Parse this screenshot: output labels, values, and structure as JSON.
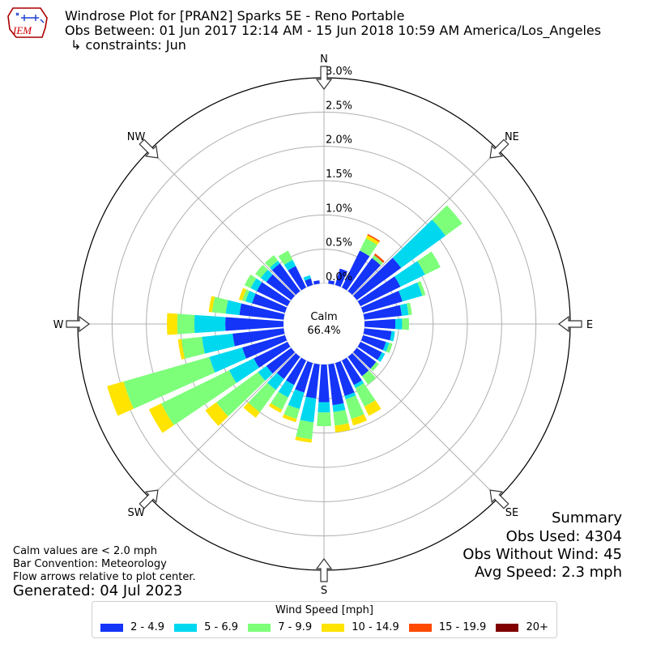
{
  "header": {
    "title": "Windrose Plot for [PRAN2] Sparks 5E - Reno Portable",
    "obs_between": "Obs Between: 01 Jun 2017 12:14 AM - 15 Jun 2018 10:59 AM America/Los_Angeles",
    "constraints": "↳ constraints: Jun",
    "logo_text": "IEM"
  },
  "summary": {
    "title": "Summary",
    "obs_used": "Obs Used: 4304",
    "obs_without_wind": "Obs Without Wind: 45",
    "avg_speed": "Avg Speed: 2.3 mph"
  },
  "notes": {
    "calm_note": "Calm values are < 2.0 mph",
    "bar_convention": "Bar Convention: Meteorology",
    "flow_arrows": "Flow arrows relative to plot center.",
    "generated": "Generated: 04 Jul 2023"
  },
  "colors": {
    "2 - 4.9": "#1434f8",
    "5 - 6.9": "#00d8f0",
    "7 - 9.9": "#7dff7a",
    "10 - 14.9": "#ffe400",
    "15 - 19.9": "#ff4a00",
    "20+": "#800000"
  },
  "chart_data": {
    "type": "windrose",
    "calm": {
      "label": "Calm",
      "value": "66.4%"
    },
    "radial_unit": "percent",
    "radial_ticks": [
      "0.0%",
      "0.5%",
      "1.0%",
      "1.5%",
      "2.0%",
      "2.5%",
      "3.0%"
    ],
    "rlim": [
      0,
      3.0
    ],
    "cardinal_labels": [
      "N",
      "NE",
      "E",
      "SE",
      "S",
      "SW",
      "W",
      "NW"
    ],
    "legend_title": "Wind Speed [mph]",
    "bins": [
      "2 - 4.9",
      "5 - 6.9",
      "7 - 9.9",
      "10 - 14.9",
      "15 - 19.9",
      "20+"
    ],
    "directions_deg": [
      0,
      10,
      20,
      30,
      40,
      50,
      60,
      70,
      80,
      90,
      100,
      110,
      120,
      130,
      140,
      150,
      160,
      170,
      180,
      190,
      200,
      210,
      220,
      230,
      240,
      250,
      260,
      270,
      280,
      290,
      300,
      310,
      320,
      330,
      340,
      350
    ],
    "cumulative_percent": [
      [
        0.0,
        0.0,
        0.0,
        0.0,
        0.0,
        0.0
      ],
      [
        0.05,
        0.05,
        0.05,
        0.05,
        0.05,
        0.05
      ],
      [
        0.25,
        0.25,
        0.25,
        0.25,
        0.25,
        0.25
      ],
      [
        0.6,
        0.6,
        0.8,
        0.85,
        0.87,
        0.87
      ],
      [
        0.6,
        0.6,
        0.65,
        0.65,
        0.68,
        0.68
      ],
      [
        0.8,
        1.6,
        1.9,
        1.9,
        1.9,
        1.9
      ],
      [
        0.65,
        1.05,
        1.3,
        1.3,
        1.3,
        1.3
      ],
      [
        0.6,
        0.9,
        0.95,
        0.95,
        0.95,
        0.95
      ],
      [
        0.55,
        0.65,
        0.7,
        0.7,
        0.7,
        0.7
      ],
      [
        0.45,
        0.55,
        0.65,
        0.65,
        0.65,
        0.65
      ],
      [
        0.4,
        0.45,
        0.45,
        0.45,
        0.45,
        0.45
      ],
      [
        0.35,
        0.4,
        0.45,
        0.45,
        0.45,
        0.45
      ],
      [
        0.35,
        0.4,
        0.4,
        0.4,
        0.4,
        0.4
      ],
      [
        0.35,
        0.35,
        0.4,
        0.4,
        0.4,
        0.4
      ],
      [
        0.35,
        0.35,
        0.5,
        0.5,
        0.5,
        0.5
      ],
      [
        0.4,
        0.45,
        0.75,
        0.9,
        0.9,
        0.9
      ],
      [
        0.5,
        0.55,
        0.85,
        0.95,
        0.95,
        0.95
      ],
      [
        0.6,
        0.7,
        0.9,
        1.0,
        1.0,
        1.0
      ],
      [
        0.55,
        0.7,
        0.9,
        0.9,
        0.9,
        0.9
      ],
      [
        0.5,
        0.85,
        1.1,
        1.15,
        1.15,
        1.15
      ],
      [
        0.45,
        0.7,
        0.85,
        0.9,
        0.9,
        0.9
      ],
      [
        0.4,
        0.6,
        0.8,
        0.85,
        0.85,
        0.85
      ],
      [
        0.4,
        0.6,
        1.0,
        1.1,
        1.1,
        1.1
      ],
      [
        0.45,
        0.6,
        1.35,
        1.55,
        1.55,
        1.55
      ],
      [
        0.55,
        0.95,
        2.05,
        2.25,
        2.25,
        2.25
      ],
      [
        0.65,
        1.15,
        2.45,
        2.7,
        2.7,
        2.7
      ],
      [
        0.75,
        1.2,
        1.5,
        1.55,
        1.55,
        1.55
      ],
      [
        0.85,
        1.3,
        1.55,
        1.7,
        1.7,
        1.7
      ],
      [
        0.65,
        0.85,
        1.05,
        1.1,
        1.1,
        1.1
      ],
      [
        0.5,
        0.6,
        0.65,
        0.7,
        0.7,
        0.7
      ],
      [
        0.5,
        0.6,
        0.7,
        0.7,
        0.7,
        0.7
      ],
      [
        0.45,
        0.55,
        0.65,
        0.65,
        0.65,
        0.65
      ],
      [
        0.5,
        0.55,
        0.65,
        0.65,
        0.65,
        0.65
      ],
      [
        0.35,
        0.45,
        0.6,
        0.6,
        0.6,
        0.6
      ],
      [
        0.1,
        0.15,
        0.15,
        0.15,
        0.15,
        0.15
      ],
      [
        0.05,
        0.05,
        0.05,
        0.05,
        0.05,
        0.05
      ]
    ]
  }
}
